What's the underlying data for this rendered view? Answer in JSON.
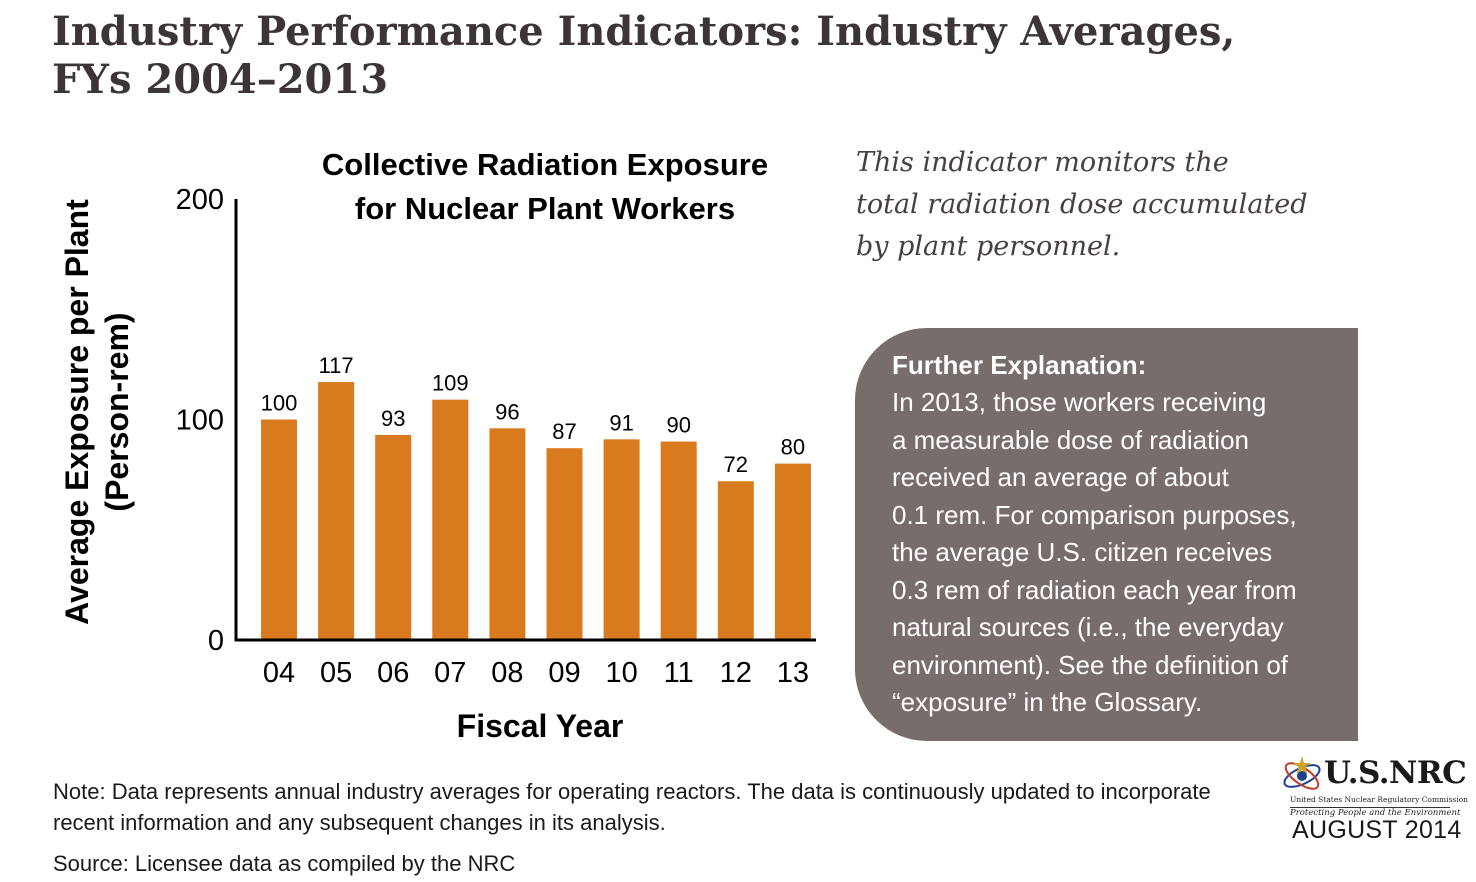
{
  "header": {
    "title_line1": "Industry Performance Indicators: Industry Averages,",
    "title_line2": "FYs 2004–2013"
  },
  "chart_data": {
    "type": "bar",
    "title_line1": "Collective Radiation Exposure",
    "title_line2": "for Nuclear Plant Workers",
    "xlabel": "Fiscal Year",
    "ylabel_line1": "Average Exposure per Plant",
    "ylabel_line2": "(Person-rem)",
    "categories": [
      "04",
      "05",
      "06",
      "07",
      "08",
      "09",
      "10",
      "11",
      "12",
      "13"
    ],
    "values": [
      100,
      117,
      93,
      109,
      96,
      87,
      91,
      90,
      72,
      80
    ],
    "data_labels": [
      "100",
      "117",
      "93",
      "109",
      "96",
      "87",
      "91",
      "90",
      "72",
      "80"
    ],
    "yticks": [
      0,
      100,
      200
    ],
    "ylim": [
      0,
      200
    ],
    "grid": false,
    "legend": false,
    "bar_color": "#d97a1e"
  },
  "intro": {
    "lines": [
      "This indicator monitors the",
      "total radiation dose accumulated",
      "by plant personnel."
    ]
  },
  "explanation": {
    "heading": "Further Explanation:",
    "lines": [
      "In 2013, those workers receiving",
      "a measurable dose of radiation",
      "received an average of about",
      "0.1 rem. For comparison purposes,",
      "the average U.S. citizen receives",
      "0.3 rem of radiation each year from",
      "natural sources (i.e., the everyday",
      "environment). See the definition of",
      "“exposure” in the Glossary."
    ],
    "box_color": "#776d6a"
  },
  "footer": {
    "note_line1": "Note: Data represents annual industry averages for operating reactors. The data is continuously updated to incorporate",
    "note_line2": "recent information and any subsequent changes in its analysis.",
    "source": "Source: Licensee data as compiled by the NRC"
  },
  "logo": {
    "name": "U.S.NRC",
    "subtitle": "United States Nuclear Regulatory Commission",
    "tagline": "Protecting People and the Environment",
    "icon": "nrc-atom-logo-icon"
  },
  "date": "AUGUST 2014",
  "colors": {
    "title": "#3d3535",
    "intro_text": "#4a3f3f",
    "bar": "#d97a1e",
    "box": "#776d6a"
  }
}
